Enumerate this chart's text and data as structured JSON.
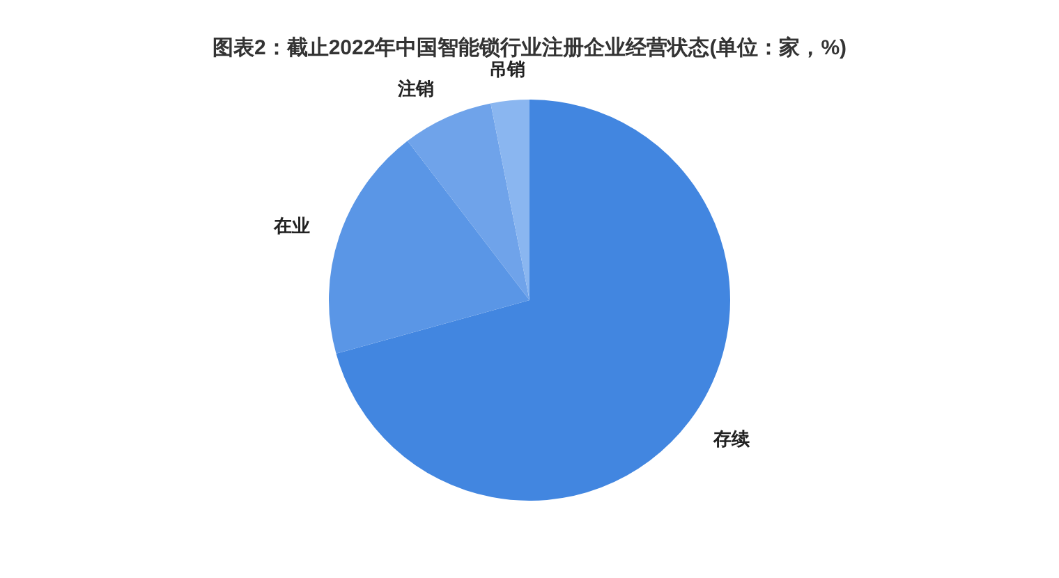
{
  "chart_data": {
    "type": "pie",
    "title": "图表2：截止2022年中国智能锁行业注册企业经营状态(单位：家，%)",
    "categories": [
      "存续",
      "在业",
      "注销",
      "吊销"
    ],
    "values": [
      70.7,
      18.9,
      7.3,
      3.1
    ],
    "colors": [
      "#4286e0",
      "#5a96e6",
      "#6fa3ea",
      "#8ab6f0"
    ],
    "legend": false
  }
}
